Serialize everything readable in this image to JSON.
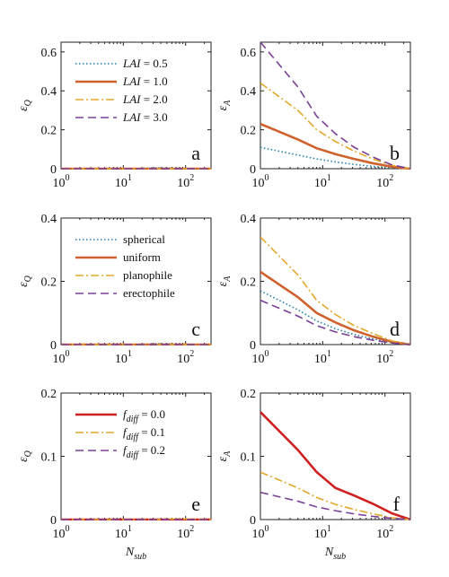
{
  "chart_data": [
    {
      "panel": "a",
      "type": "line",
      "ylabel": "εQ",
      "xlabel": "",
      "xscale": "log",
      "xlim": [
        1,
        256
      ],
      "ylim": [
        0,
        0.65
      ],
      "yticks": [
        "0",
        "0.2",
        "0.4",
        "0.6"
      ],
      "xticks": [
        "10^0",
        "10^1",
        "10^2"
      ],
      "legend": "top-left",
      "series": [
        {
          "name": "LAI = 0.5",
          "color": "#1f7fa6",
          "dash": "dotted",
          "x": [
            1,
            4,
            16,
            32,
            64,
            128,
            256
          ],
          "y": [
            0,
            0,
            0,
            0.005,
            0.003,
            0,
            0
          ]
        },
        {
          "name": "LAI = 1.0",
          "color": "#d0612c",
          "dash": "solid",
          "x": [
            1,
            4,
            16,
            32,
            64,
            128,
            256
          ],
          "y": [
            0,
            0,
            0,
            0,
            0,
            0,
            0
          ]
        },
        {
          "name": "LAI = 2.0",
          "color": "#e2a82c",
          "dash": "dashdot",
          "x": [
            1,
            4,
            16,
            32,
            64,
            128,
            256
          ],
          "y": [
            0,
            0,
            0,
            0,
            0,
            0,
            0
          ]
        },
        {
          "name": "LAI = 3.0",
          "color": "#7b3f98",
          "dash": "dashed",
          "x": [
            1,
            4,
            16,
            32,
            64,
            128,
            256
          ],
          "y": [
            0,
            0,
            0,
            0,
            0,
            0,
            0
          ]
        }
      ]
    },
    {
      "panel": "b",
      "type": "line",
      "ylabel": "εA",
      "xlabel": "",
      "xscale": "log",
      "xlim": [
        1,
        256
      ],
      "ylim": [
        0,
        0.65
      ],
      "yticks": [
        "0",
        "0.2",
        "0.4",
        "0.6"
      ],
      "xticks": [
        "10^0",
        "10^1",
        "10^2"
      ],
      "series": [
        {
          "name": "LAI = 0.5",
          "color": "#1f7fa6",
          "dash": "dotted",
          "x": [
            1,
            4,
            8,
            16,
            32,
            64,
            128,
            256
          ],
          "y": [
            0.11,
            0.07,
            0.05,
            0.035,
            0.022,
            0.012,
            0.004,
            0
          ]
        },
        {
          "name": "LAI = 1.0",
          "color": "#d0612c",
          "dash": "solid",
          "x": [
            1,
            4,
            8,
            16,
            32,
            64,
            128,
            256
          ],
          "y": [
            0.23,
            0.15,
            0.105,
            0.075,
            0.05,
            0.028,
            0.01,
            0
          ]
        },
        {
          "name": "LAI = 2.0",
          "color": "#e2a82c",
          "dash": "dashdot",
          "x": [
            1,
            4,
            8,
            16,
            32,
            64,
            128,
            256
          ],
          "y": [
            0.44,
            0.3,
            0.2,
            0.14,
            0.09,
            0.05,
            0.018,
            0
          ]
        },
        {
          "name": "LAI = 3.0",
          "color": "#7b3f98",
          "dash": "dashed",
          "x": [
            1,
            4,
            8,
            16,
            32,
            64,
            128,
            256
          ],
          "y": [
            0.65,
            0.42,
            0.27,
            0.18,
            0.11,
            0.06,
            0.02,
            0
          ]
        }
      ]
    },
    {
      "panel": "c",
      "type": "line",
      "ylabel": "εQ",
      "xlabel": "",
      "xscale": "log",
      "xlim": [
        1,
        256
      ],
      "ylim": [
        0,
        0.4
      ],
      "yticks": [
        "0",
        "0.2",
        "0.4"
      ],
      "xticks": [
        "10^0",
        "10^1",
        "10^2"
      ],
      "legend": "top-left",
      "series": [
        {
          "name": "spherical",
          "color": "#1f7fa6",
          "dash": "dotted",
          "x": [
            1,
            4,
            16,
            32,
            64,
            128,
            256
          ],
          "y": [
            0,
            0,
            0,
            0.003,
            0.002,
            0,
            0
          ]
        },
        {
          "name": "uniform",
          "color": "#d0612c",
          "dash": "solid",
          "x": [
            1,
            4,
            16,
            32,
            64,
            128,
            256
          ],
          "y": [
            0,
            0,
            0,
            0,
            0,
            0,
            0
          ]
        },
        {
          "name": "planophile",
          "color": "#e2a82c",
          "dash": "dashdot",
          "x": [
            1,
            4,
            16,
            32,
            64,
            128,
            256
          ],
          "y": [
            0,
            0,
            0,
            0,
            0,
            0,
            0
          ]
        },
        {
          "name": "erectophile",
          "color": "#7b3f98",
          "dash": "dashed",
          "x": [
            1,
            4,
            16,
            32,
            64,
            128,
            256
          ],
          "y": [
            0,
            0,
            0,
            0,
            0,
            0,
            0
          ]
        }
      ]
    },
    {
      "panel": "d",
      "type": "line",
      "ylabel": "εA",
      "xlabel": "",
      "xscale": "log",
      "xlim": [
        1,
        256
      ],
      "ylim": [
        0,
        0.4
      ],
      "yticks": [
        "0",
        "0.2",
        "0.4"
      ],
      "xticks": [
        "10^0",
        "10^1",
        "10^2"
      ],
      "series": [
        {
          "name": "spherical",
          "color": "#1f7fa6",
          "dash": "dotted",
          "x": [
            1,
            4,
            8,
            16,
            32,
            64,
            128,
            256
          ],
          "y": [
            0.17,
            0.11,
            0.075,
            0.05,
            0.032,
            0.018,
            0.006,
            0
          ]
        },
        {
          "name": "uniform",
          "color": "#d0612c",
          "dash": "solid",
          "x": [
            1,
            4,
            8,
            16,
            32,
            64,
            128,
            256
          ],
          "y": [
            0.23,
            0.15,
            0.1,
            0.07,
            0.045,
            0.025,
            0.009,
            0
          ]
        },
        {
          "name": "planophile",
          "color": "#e2a82c",
          "dash": "dashdot",
          "x": [
            1,
            4,
            8,
            16,
            32,
            64,
            128,
            256
          ],
          "y": [
            0.34,
            0.22,
            0.14,
            0.095,
            0.06,
            0.035,
            0.012,
            0
          ]
        },
        {
          "name": "erectophile",
          "color": "#7b3f98",
          "dash": "dashed",
          "x": [
            1,
            4,
            8,
            16,
            32,
            64,
            128,
            256
          ],
          "y": [
            0.14,
            0.09,
            0.06,
            0.04,
            0.025,
            0.014,
            0.005,
            0
          ]
        }
      ]
    },
    {
      "panel": "e",
      "type": "line",
      "ylabel": "εQ",
      "xlabel": "Nsub",
      "xscale": "log",
      "xlim": [
        1,
        256
      ],
      "ylim": [
        0,
        0.2
      ],
      "yticks": [
        "0",
        "0.1",
        "0.2"
      ],
      "xticks": [
        "10^0",
        "10^1",
        "10^2"
      ],
      "legend": "top-left",
      "series": [
        {
          "name": "fdiff = 0.0",
          "color": "#d01f1f",
          "dash": "solid",
          "x": [
            1,
            4,
            16,
            32,
            64,
            128,
            256
          ],
          "y": [
            0,
            0,
            0,
            0,
            0,
            0,
            0
          ]
        },
        {
          "name": "fdiff = 0.1",
          "color": "#e2a82c",
          "dash": "dashdot",
          "x": [
            1,
            4,
            16,
            32,
            64,
            128,
            256
          ],
          "y": [
            0,
            0,
            0,
            0,
            0.001,
            0.001,
            0
          ]
        },
        {
          "name": "fdiff = 0.2",
          "color": "#7b3f98",
          "dash": "dashed",
          "x": [
            1,
            4,
            16,
            32,
            64,
            128,
            256
          ],
          "y": [
            0,
            0,
            0,
            0,
            0,
            0,
            0
          ]
        }
      ]
    },
    {
      "panel": "f",
      "type": "line",
      "ylabel": "εA",
      "xlabel": "Nsub",
      "xscale": "log",
      "xlim": [
        1,
        256
      ],
      "ylim": [
        0,
        0.2
      ],
      "yticks": [
        "0",
        "0.1",
        "0.2"
      ],
      "xticks": [
        "10^0",
        "10^1",
        "10^2"
      ],
      "series": [
        {
          "name": "fdiff = 0.0",
          "color": "#d01f1f",
          "dash": "solid",
          "x": [
            1,
            4,
            8,
            16,
            32,
            64,
            128,
            256
          ],
          "y": [
            0.17,
            0.11,
            0.075,
            0.05,
            0.038,
            0.025,
            0.01,
            0
          ]
        },
        {
          "name": "fdiff = 0.1",
          "color": "#e2a82c",
          "dash": "dashdot",
          "x": [
            1,
            4,
            8,
            16,
            32,
            64,
            128,
            256
          ],
          "y": [
            0.075,
            0.05,
            0.035,
            0.024,
            0.016,
            0.009,
            0.003,
            0
          ]
        },
        {
          "name": "fdiff = 0.2",
          "color": "#7b3f98",
          "dash": "dashed",
          "x": [
            1,
            4,
            8,
            16,
            32,
            64,
            128,
            256
          ],
          "y": [
            0.043,
            0.029,
            0.02,
            0.014,
            0.009,
            0.005,
            0.002,
            0
          ]
        }
      ]
    }
  ]
}
